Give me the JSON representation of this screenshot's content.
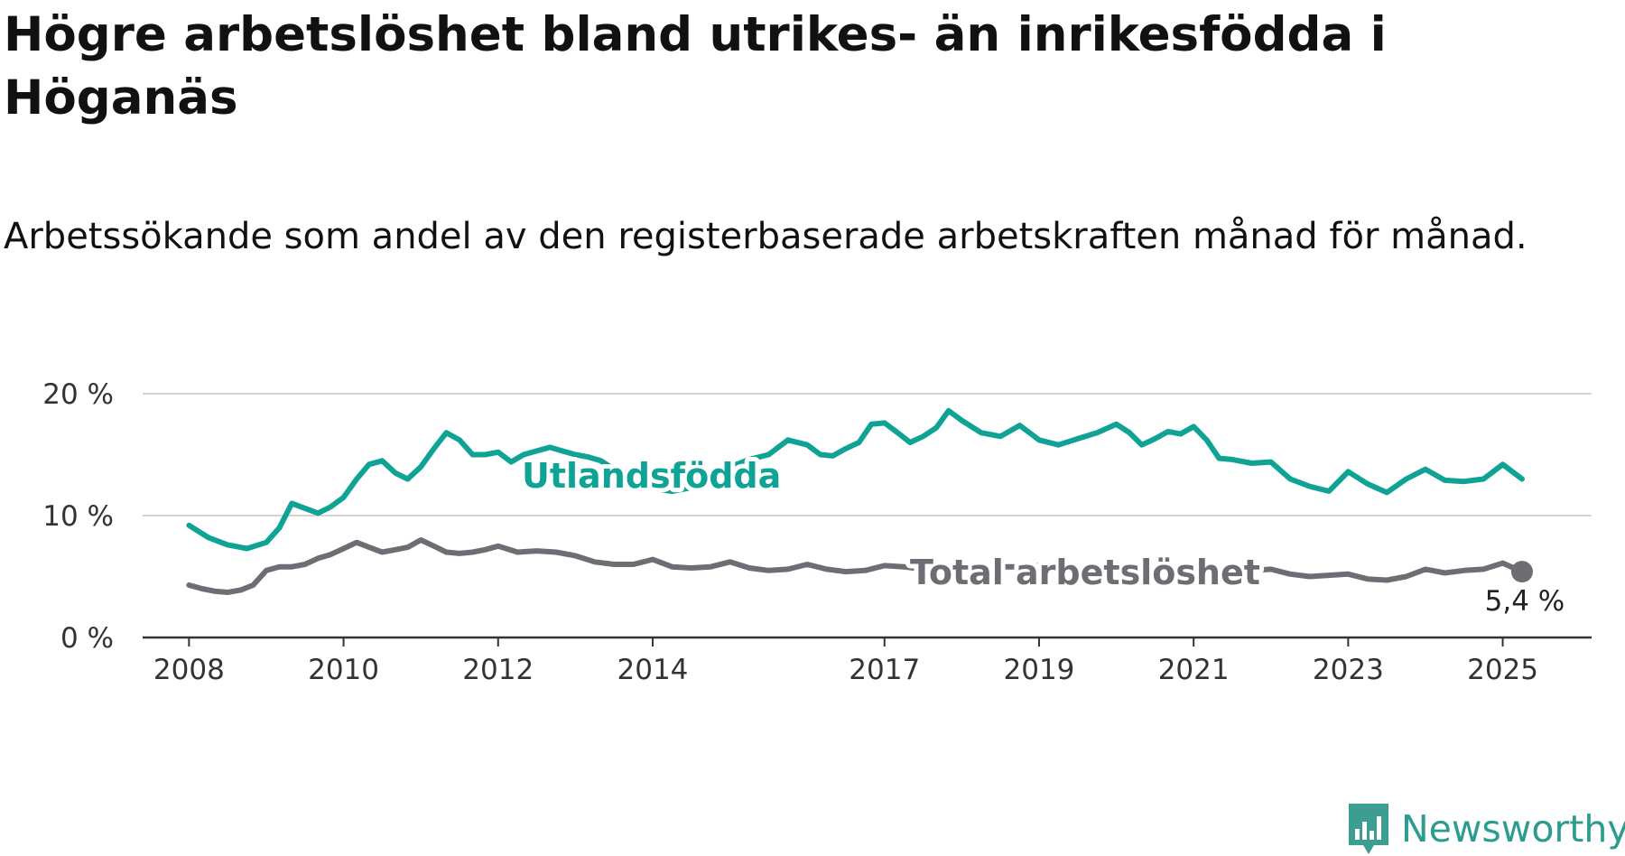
{
  "title": "Högre arbetslöshet bland utrikes- än inrikesfödda i Höganäs",
  "subtitle": "Arbetssökande som andel av den registerbaserade arbetskraften månad för månad.",
  "brand": {
    "name": "Newsworthy",
    "icon": "newsworthy-chart-icon",
    "color": "#3c9e90"
  },
  "chart_data": {
    "type": "line",
    "ylim": [
      0,
      20
    ],
    "y_ticks": [
      0,
      10,
      20
    ],
    "y_tick_labels": [
      "0 %",
      "10 %",
      "20 %"
    ],
    "x_ticks": [
      2008,
      2010,
      2012,
      2014,
      2017,
      2019,
      2021,
      2023,
      2025
    ],
    "x_tick_labels": [
      "2008",
      "2010",
      "2012",
      "2014",
      "2017",
      "2019",
      "2021",
      "2023",
      "2025"
    ],
    "grid": true,
    "legend": "inline",
    "end_label": "5,4 %",
    "series": [
      {
        "name": "Utlandsfödda",
        "color": "#0fa396",
        "x": [
          2008.0,
          2008.25,
          2008.5,
          2008.75,
          2009.0,
          2009.17,
          2009.33,
          2009.5,
          2009.67,
          2009.83,
          2010.0,
          2010.17,
          2010.33,
          2010.5,
          2010.67,
          2010.83,
          2011.0,
          2011.17,
          2011.33,
          2011.5,
          2011.67,
          2011.83,
          2012.0,
          2012.17,
          2012.33,
          2012.5,
          2012.67,
          2012.83,
          2013.0,
          2013.17,
          2013.33,
          2013.5,
          2013.75,
          2014.0,
          2014.25,
          2014.5,
          2014.75,
          2015.0,
          2015.25,
          2015.5,
          2015.75,
          2016.0,
          2016.17,
          2016.33,
          2016.5,
          2016.67,
          2016.83,
          2017.0,
          2017.17,
          2017.33,
          2017.5,
          2017.67,
          2017.83,
          2018.0,
          2018.25,
          2018.5,
          2018.75,
          2019.0,
          2019.25,
          2019.5,
          2019.75,
          2020.0,
          2020.17,
          2020.33,
          2020.5,
          2020.67,
          2020.83,
          2021.0,
          2021.17,
          2021.33,
          2021.5,
          2021.75,
          2022.0,
          2022.25,
          2022.5,
          2022.75,
          2023.0,
          2023.25,
          2023.5,
          2023.75,
          2024.0,
          2024.25,
          2024.5,
          2024.75,
          2025.0,
          2025.25
        ],
        "y": [
          9.2,
          8.2,
          7.6,
          7.3,
          7.8,
          9.0,
          11.0,
          10.6,
          10.2,
          10.7,
          11.5,
          13.0,
          14.2,
          14.5,
          13.5,
          13.0,
          14.0,
          15.5,
          16.8,
          16.2,
          15.0,
          15.0,
          15.2,
          14.4,
          15.0,
          15.3,
          15.6,
          15.3,
          15.0,
          14.8,
          14.5,
          13.8,
          12.6,
          12.2,
          12.0,
          12.3,
          13.2,
          14.0,
          14.6,
          15.0,
          16.2,
          15.8,
          15.0,
          14.9,
          15.5,
          16.0,
          17.5,
          17.6,
          16.8,
          16.0,
          16.5,
          17.2,
          18.6,
          17.8,
          16.8,
          16.5,
          17.4,
          16.2,
          15.8,
          16.3,
          16.8,
          17.5,
          16.8,
          15.8,
          16.3,
          16.9,
          16.7,
          17.3,
          16.2,
          14.7,
          14.6,
          14.3,
          14.4,
          13.0,
          12.4,
          12.0,
          13.6,
          12.6,
          11.9,
          13.0,
          13.8,
          12.9,
          12.8,
          13.0,
          14.2,
          13.0
        ]
      },
      {
        "name": "Total arbetslöshet",
        "color": "#6e6d73",
        "x": [
          2008.0,
          2008.17,
          2008.33,
          2008.5,
          2008.67,
          2008.83,
          2009.0,
          2009.17,
          2009.33,
          2009.5,
          2009.67,
          2009.83,
          2010.0,
          2010.17,
          2010.33,
          2010.5,
          2010.67,
          2010.83,
          2011.0,
          2011.17,
          2011.33,
          2011.5,
          2011.67,
          2011.83,
          2012.0,
          2012.25,
          2012.5,
          2012.75,
          2013.0,
          2013.25,
          2013.5,
          2013.75,
          2014.0,
          2014.25,
          2014.5,
          2014.75,
          2015.0,
          2015.25,
          2015.5,
          2015.75,
          2016.0,
          2016.25,
          2016.5,
          2016.75,
          2017.0,
          2017.25,
          2017.5,
          2017.75,
          2018.0,
          2018.25,
          2018.5,
          2018.75,
          2019.0,
          2019.25,
          2019.5,
          2019.75,
          2020.0,
          2020.25,
          2020.5,
          2020.75,
          2021.0,
          2021.25,
          2021.5,
          2021.75,
          2022.0,
          2022.25,
          2022.5,
          2022.75,
          2023.0,
          2023.25,
          2023.5,
          2023.75,
          2024.0,
          2024.25,
          2024.5,
          2024.75,
          2025.0,
          2025.25
        ],
        "y": [
          4.3,
          4.0,
          3.8,
          3.7,
          3.9,
          4.3,
          5.5,
          5.8,
          5.8,
          6.0,
          6.5,
          6.8,
          7.3,
          7.8,
          7.4,
          7.0,
          7.2,
          7.4,
          8.0,
          7.5,
          7.0,
          6.9,
          7.0,
          7.2,
          7.5,
          7.0,
          7.1,
          7.0,
          6.7,
          6.2,
          6.0,
          6.0,
          6.4,
          5.8,
          5.7,
          5.8,
          6.2,
          5.7,
          5.5,
          5.6,
          6.0,
          5.6,
          5.4,
          5.5,
          5.9,
          5.8,
          5.6,
          5.7,
          6.0,
          5.9,
          5.8,
          5.8,
          5.9,
          5.7,
          5.6,
          5.8,
          6.0,
          5.6,
          5.5,
          5.6,
          5.7,
          5.5,
          5.4,
          5.5,
          5.6,
          5.2,
          5.0,
          5.1,
          5.2,
          4.8,
          4.7,
          5.0,
          5.6,
          5.3,
          5.5,
          5.6,
          6.1,
          5.4
        ]
      }
    ]
  }
}
